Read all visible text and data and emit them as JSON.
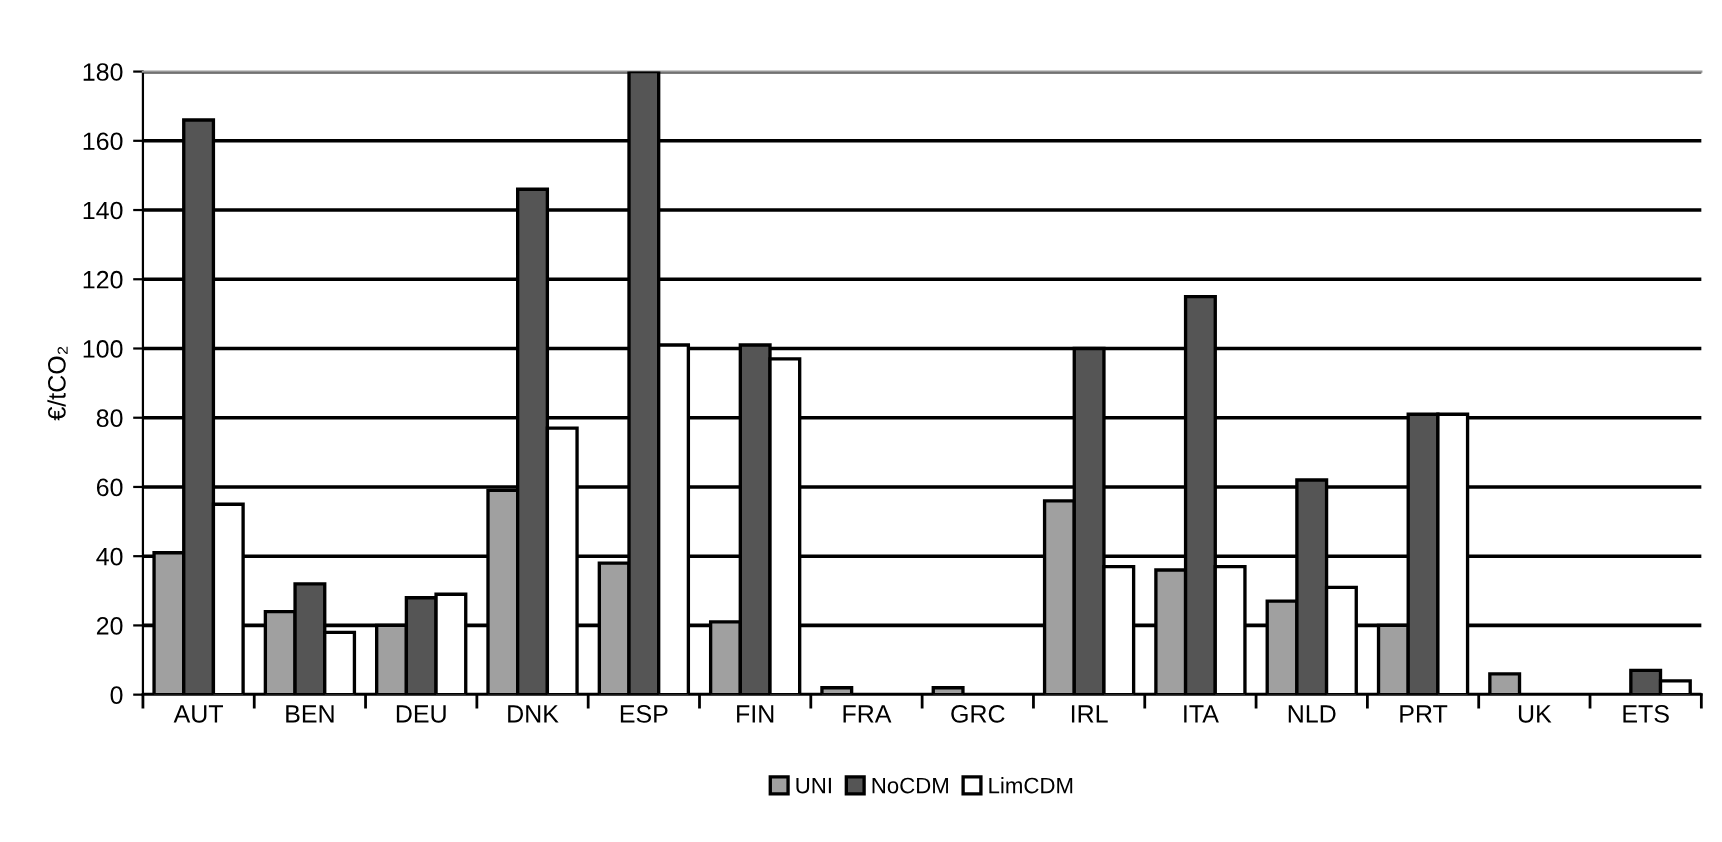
{
  "chart_data": {
    "type": "bar",
    "ylabel": "€/tCO₂",
    "categories": [
      "AUT",
      "BEN",
      "DEU",
      "DNK",
      "ESP",
      "FIN",
      "FRA",
      "GRC",
      "IRL",
      "ITA",
      "NLD",
      "PRT",
      "UK",
      "ETS"
    ],
    "series": [
      {
        "name": "UNI",
        "color": "#a0a0a0",
        "values": [
          41,
          24,
          20,
          59,
          38,
          21,
          2,
          2,
          56,
          36,
          27,
          20,
          6,
          null
        ]
      },
      {
        "name": "NoCDM",
        "color": "#555555",
        "values": [
          166,
          32,
          28,
          146,
          180,
          101,
          null,
          null,
          100,
          115,
          62,
          81,
          null,
          7
        ]
      },
      {
        "name": "LimCDM",
        "color": "#ffffff",
        "values": [
          55,
          18,
          29,
          77,
          101,
          97,
          null,
          null,
          37,
          37,
          31,
          81,
          null,
          4
        ]
      }
    ],
    "ylim": [
      0,
      180
    ],
    "yticks": [
      0,
      20,
      40,
      60,
      80,
      100,
      120,
      140,
      160,
      180
    ],
    "grid": "y",
    "legend": "bottom"
  }
}
